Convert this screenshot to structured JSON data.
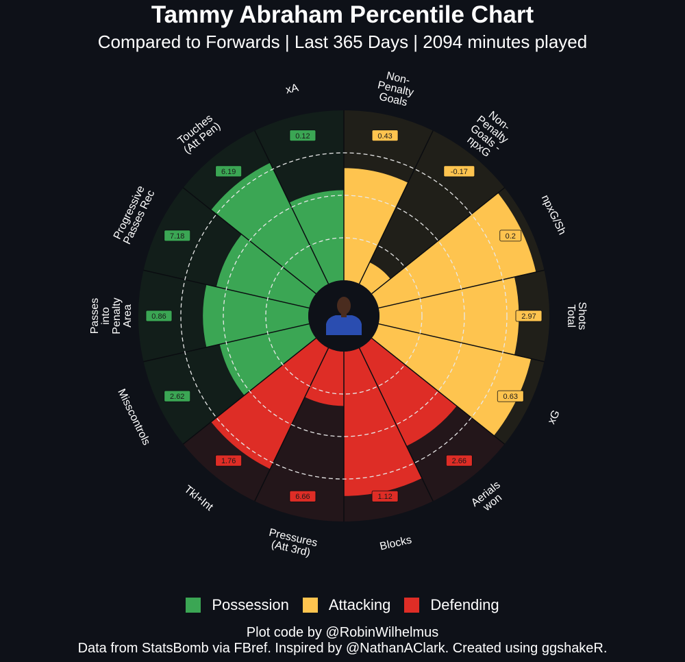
{
  "header": {
    "title": "Tammy Abraham Percentile Chart",
    "subtitle": "Compared to Forwards | Last 365 Days | 2094 minutes played"
  },
  "chart_data": {
    "type": "polar-bar",
    "title": "Tammy Abraham Percentile Chart",
    "subtitle": "Compared to Forwards | Last 365 Days | 2094 minutes played",
    "value_range": [
      0,
      100
    ],
    "grid_rings": [
      25,
      50,
      75
    ],
    "grid_style": "dashed",
    "center_image": "player-photo",
    "legend_position": "bottom",
    "groups": [
      {
        "name": "Possession",
        "color": "#3ba654"
      },
      {
        "name": "Attacking",
        "color": "#fec44f"
      },
      {
        "name": "Defending",
        "color": "#de2d26"
      }
    ],
    "bars": [
      {
        "label": "Non-\nPenalty\nGoals",
        "group": "Attacking",
        "percentile": 66,
        "value": "0.43"
      },
      {
        "label": "Non-\nPenalty\nGoals -\nnpxG",
        "group": "Attacking",
        "percentile": 14,
        "value": "-0.17"
      },
      {
        "label": "npxG/Sh",
        "group": "Attacking",
        "percentile": 95,
        "value": "0.2"
      },
      {
        "label": "Shots\nTotal",
        "group": "Attacking",
        "percentile": 82,
        "value": "2.97"
      },
      {
        "label": "xG",
        "group": "Attacking",
        "percentile": 92,
        "value": "0.63"
      },
      {
        "label": "Aerials\nwon",
        "group": "Defending",
        "percentile": 64,
        "value": "2.66"
      },
      {
        "label": "Blocks",
        "group": "Defending",
        "percentile": 85,
        "value": "1.12"
      },
      {
        "label": "Pressures\n(Att 3rd)",
        "group": "Defending",
        "percentile": 32,
        "value": "6.66"
      },
      {
        "label": "Tkl+Int",
        "group": "Defending",
        "percentile": 79,
        "value": "1.76"
      },
      {
        "label": "Misscontrols",
        "group": "Possession",
        "percentile": 54,
        "value": "2.62"
      },
      {
        "label": "Passes\ninto\nPenalty\nArea",
        "group": "Possession",
        "percentile": 62,
        "value": "0.86"
      },
      {
        "label": "Progressive\nPasses Rec",
        "group": "Possession",
        "percentile": 56,
        "value": "7.18"
      },
      {
        "label": "Touches\n(Att Pen)",
        "group": "Possession",
        "percentile": 79,
        "value": "6.19"
      },
      {
        "label": "xA",
        "group": "Possession",
        "percentile": 53,
        "value": "0.12"
      }
    ]
  },
  "legend": {
    "items": [
      {
        "label": "Possession",
        "color": "#3ba654"
      },
      {
        "label": "Attacking",
        "color": "#fec44f"
      },
      {
        "label": "Defending",
        "color": "#de2d26"
      }
    ]
  },
  "caption": {
    "line1": "Plot code by @RobinWilhelmus",
    "line2": "Data from StatsBomb via FBref. Inspired by @NathanAClark. Created using ggshakeR."
  },
  "colors": {
    "background": "#0e1118",
    "bg_possession": "#121e1a",
    "bg_attacking": "#201f19",
    "bg_defending": "#23161a"
  }
}
